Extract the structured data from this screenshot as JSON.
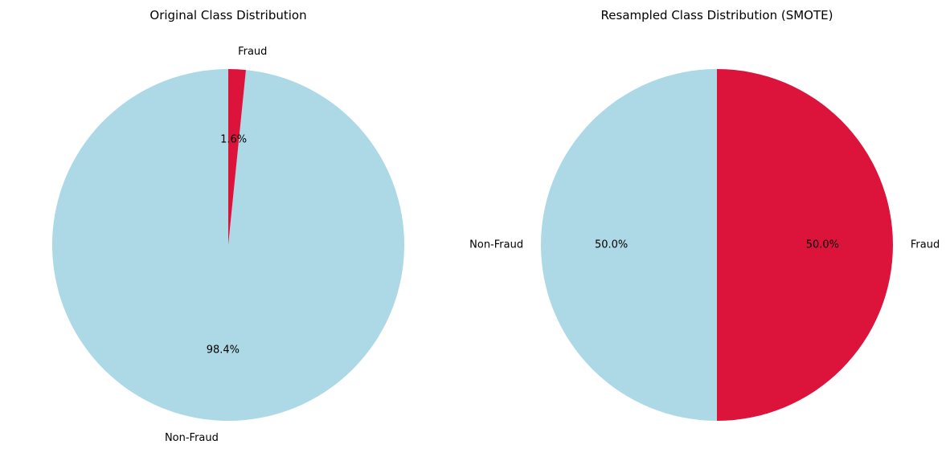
{
  "chart_data": [
    {
      "type": "pie",
      "title": "Original Class Distribution",
      "labels": [
        "Non-Fraud",
        "Fraud"
      ],
      "values": [
        98.4,
        1.6
      ],
      "pct_labels": [
        "98.4%",
        "1.6%"
      ],
      "colors": [
        "#add8e6",
        "#dc143c"
      ],
      "start_angle": 90,
      "direction": "counterclockwise"
    },
    {
      "type": "pie",
      "title": "Resampled Class Distribution (SMOTE)",
      "labels": [
        "Non-Fraud",
        "Fraud"
      ],
      "values": [
        50.0,
        50.0
      ],
      "pct_labels": [
        "50.0%",
        "50.0%"
      ],
      "colors": [
        "#add8e6",
        "#dc143c"
      ],
      "start_angle": 90,
      "direction": "counterclockwise"
    }
  ]
}
